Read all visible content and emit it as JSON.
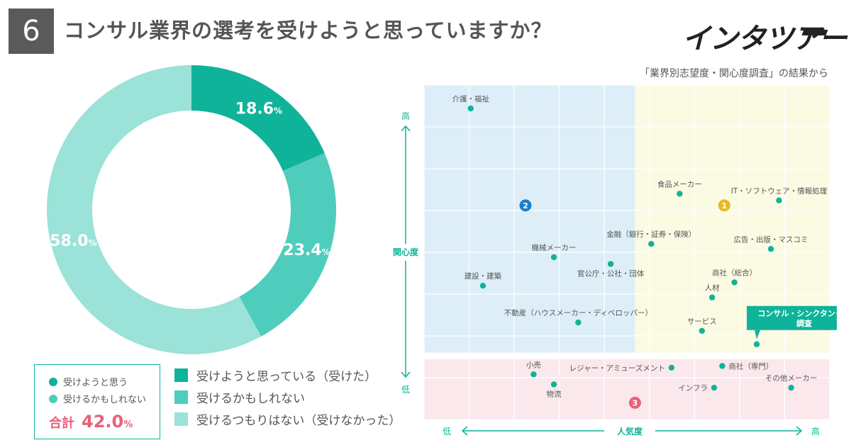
{
  "header": {
    "question_number": "6",
    "title": "コンサル業界の選考を受けようと思っていますか？",
    "logo_text": "インタツアー",
    "source_note": "「業界別志望度・関心度調査」の結果から"
  },
  "colors": {
    "dark": "#0fb39a",
    "mid": "#4ecdbd",
    "light": "#9be2d8",
    "pink": "#e8617a",
    "blue_zone": "#ddeef8",
    "yellow_zone": "#fbfae3",
    "pink_zone": "#fbe8ec",
    "point": "#0fb39a",
    "axis_label": "#0fb39a"
  },
  "summary": {
    "item1_label": "受けようと思う",
    "item2_label": "受けるかもしれない",
    "total_label": "合計",
    "total_value": "42.0",
    "total_unit": "%"
  },
  "legend": [
    {
      "label": "受けようと思っている（受けた）",
      "color": "#0fb39a"
    },
    {
      "label": "受けるかもしれない",
      "color": "#4ecdbd"
    },
    {
      "label": "受けるつもりはない（受けなかった）",
      "color": "#9be2d8"
    }
  ],
  "chart_data": [
    {
      "type": "pie",
      "style": "donut",
      "categories": [
        "受けようと思っている（受けた）",
        "受けるかもしれない",
        "受けるつもりはない（受けなかった）"
      ],
      "values": [
        18.6,
        23.4,
        58.0
      ],
      "labels": [
        "18.6",
        "23.4",
        "58.0"
      ],
      "unit": "%",
      "colors": [
        "#0fb39a",
        "#4ecdbd",
        "#9be2d8"
      ]
    },
    {
      "type": "scatter",
      "title": "業界別志望度・関心度調査",
      "xlabel": "人気度",
      "ylabel": "関心度",
      "x_low_label": "低",
      "x_high_label": "高",
      "y_low_label": "低",
      "y_high_label": "高",
      "xlim": [
        0,
        100
      ],
      "ylim": [
        0,
        100
      ],
      "zones": [
        {
          "id": "1",
          "name": "yellow",
          "x": [
            52,
            100
          ],
          "y": [
            20,
            100
          ],
          "badge_at": [
            74,
            64
          ],
          "color": "#e8b820"
        },
        {
          "id": "2",
          "name": "blue",
          "x": [
            0,
            52
          ],
          "y": [
            20,
            100
          ],
          "badge_at": [
            25,
            64
          ],
          "color": "#1e7fc8"
        },
        {
          "id": "3",
          "name": "pink",
          "x": [
            0,
            100
          ],
          "y": [
            0,
            18
          ],
          "badge_at": [
            52,
            5
          ],
          "color": "#e8617a"
        }
      ],
      "points": [
        {
          "name": "介護・福祉",
          "x": 11.5,
          "y": 93.0,
          "label_pos": "top",
          "highlight": false
        },
        {
          "name": "食品メーカー",
          "x": 63.0,
          "y": 67.5,
          "label_pos": "top",
          "highlight": false
        },
        {
          "name": "IT・ソフトウェア・情報処理",
          "x": 87.5,
          "y": 65.5,
          "label_pos": "top",
          "highlight": false
        },
        {
          "name": "金融（銀行・証券・保険）",
          "x": 56.0,
          "y": 52.5,
          "label_pos": "top",
          "highlight": false
        },
        {
          "name": "広告・出版・マスコミ",
          "x": 85.5,
          "y": 51.0,
          "label_pos": "top",
          "highlight": false
        },
        {
          "name": "機械メーカー",
          "x": 32.0,
          "y": 48.5,
          "label_pos": "top",
          "highlight": false
        },
        {
          "name": "官公庁・公社・団体",
          "x": 46.0,
          "y": 46.5,
          "label_pos": "bottom",
          "highlight": false
        },
        {
          "name": "建設・建築",
          "x": 14.5,
          "y": 40.0,
          "label_pos": "top",
          "highlight": false
        },
        {
          "name": "商社（総合）",
          "x": 76.5,
          "y": 41.0,
          "label_pos": "top",
          "highlight": false
        },
        {
          "name": "人材",
          "x": 71.0,
          "y": 36.5,
          "label_pos": "top",
          "highlight": false
        },
        {
          "name": "不動産（ハウスメーカー・ディベロッパー）",
          "x": 38.0,
          "y": 29.0,
          "label_pos": "top",
          "highlight": false
        },
        {
          "name": "サービス",
          "x": 68.5,
          "y": 26.5,
          "label_pos": "top",
          "highlight": false
        },
        {
          "name": "コンサル・シンクタンク・調査",
          "x": 82.0,
          "y": 22.5,
          "label_pos": "callout",
          "highlight": true
        },
        {
          "name": "小売",
          "x": 27.0,
          "y": 13.5,
          "label_pos": "top",
          "highlight": false
        },
        {
          "name": "物流",
          "x": 32.0,
          "y": 10.5,
          "label_pos": "bottom",
          "highlight": false
        },
        {
          "name": "レジャー・アミューズメント",
          "x": 61.0,
          "y": 15.5,
          "label_pos": "left",
          "highlight": false
        },
        {
          "name": "商社（専門）",
          "x": 73.5,
          "y": 16.0,
          "label_pos": "right",
          "highlight": false
        },
        {
          "name": "インフラ",
          "x": 71.5,
          "y": 9.5,
          "label_pos": "left",
          "highlight": false
        },
        {
          "name": "その他メーカー",
          "x": 90.5,
          "y": 9.5,
          "label_pos": "top",
          "highlight": false
        }
      ]
    }
  ]
}
